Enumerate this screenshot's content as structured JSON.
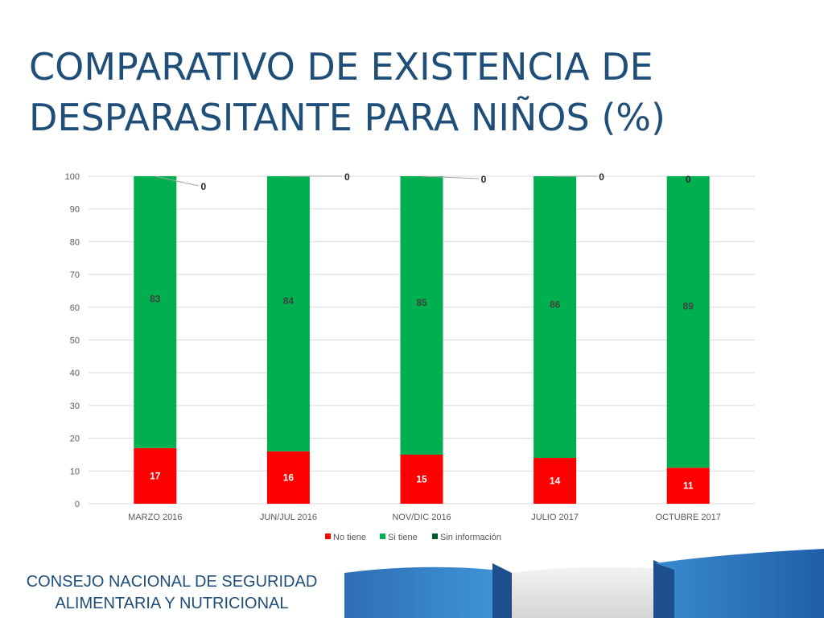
{
  "slide": {
    "title_line1": "COMPARATIVO DE EXISTENCIA DE",
    "title_line2": "DESPARASITANTE PARA NIÑOS (%)",
    "footer_line1": "CONSEJO NACIONAL DE SEGURIDAD",
    "footer_line2": "ALIMENTARIA Y NUTRICIONAL"
  },
  "colors": {
    "no_tiene": "#ff0000",
    "si_tiene": "#00b050",
    "sin_informacion": "#005a2b",
    "title": "#1f4e79",
    "grid": "#d9d9d9",
    "axis_text": "#595959",
    "label_text": "#404040"
  },
  "chart_data": {
    "type": "bar",
    "stacked": true,
    "title": "",
    "xlabel": "",
    "ylabel": "",
    "categories": [
      "MARZO 2016",
      "JUN/JUL 2016",
      "NOV/DIC 2016",
      "JULIO 2017",
      "OCTUBRE 2017"
    ],
    "series": [
      {
        "name": "No tiene",
        "values": [
          17,
          16,
          15,
          14,
          11
        ]
      },
      {
        "name": "Si tiene",
        "values": [
          83,
          84,
          85,
          86,
          89
        ]
      },
      {
        "name": "Sin información",
        "values": [
          0,
          0,
          0,
          0,
          0
        ]
      }
    ],
    "ylim": [
      0,
      100
    ],
    "yticks": [
      0,
      10,
      20,
      30,
      40,
      50,
      60,
      70,
      80,
      90,
      100
    ],
    "grid": true,
    "legend": "bottom"
  }
}
